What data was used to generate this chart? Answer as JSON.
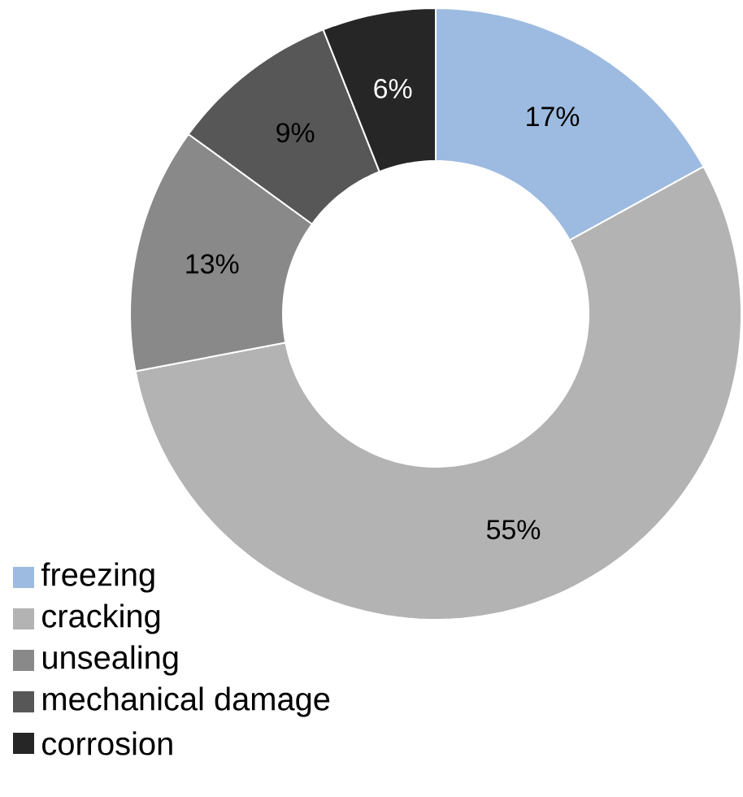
{
  "chart_data": {
    "type": "donut",
    "categories": [
      "freezing",
      "cracking",
      "unsealing",
      "mechanical damage",
      "corrosion"
    ],
    "values": [
      17,
      55,
      13,
      9,
      6
    ],
    "colors": [
      "#9dbbe0",
      "#b3b3b3",
      "#898989",
      "#575757",
      "#262626"
    ],
    "value_labels": [
      "17%",
      "55%",
      "13%",
      "9%",
      "6%"
    ],
    "legend": "bottom left"
  }
}
